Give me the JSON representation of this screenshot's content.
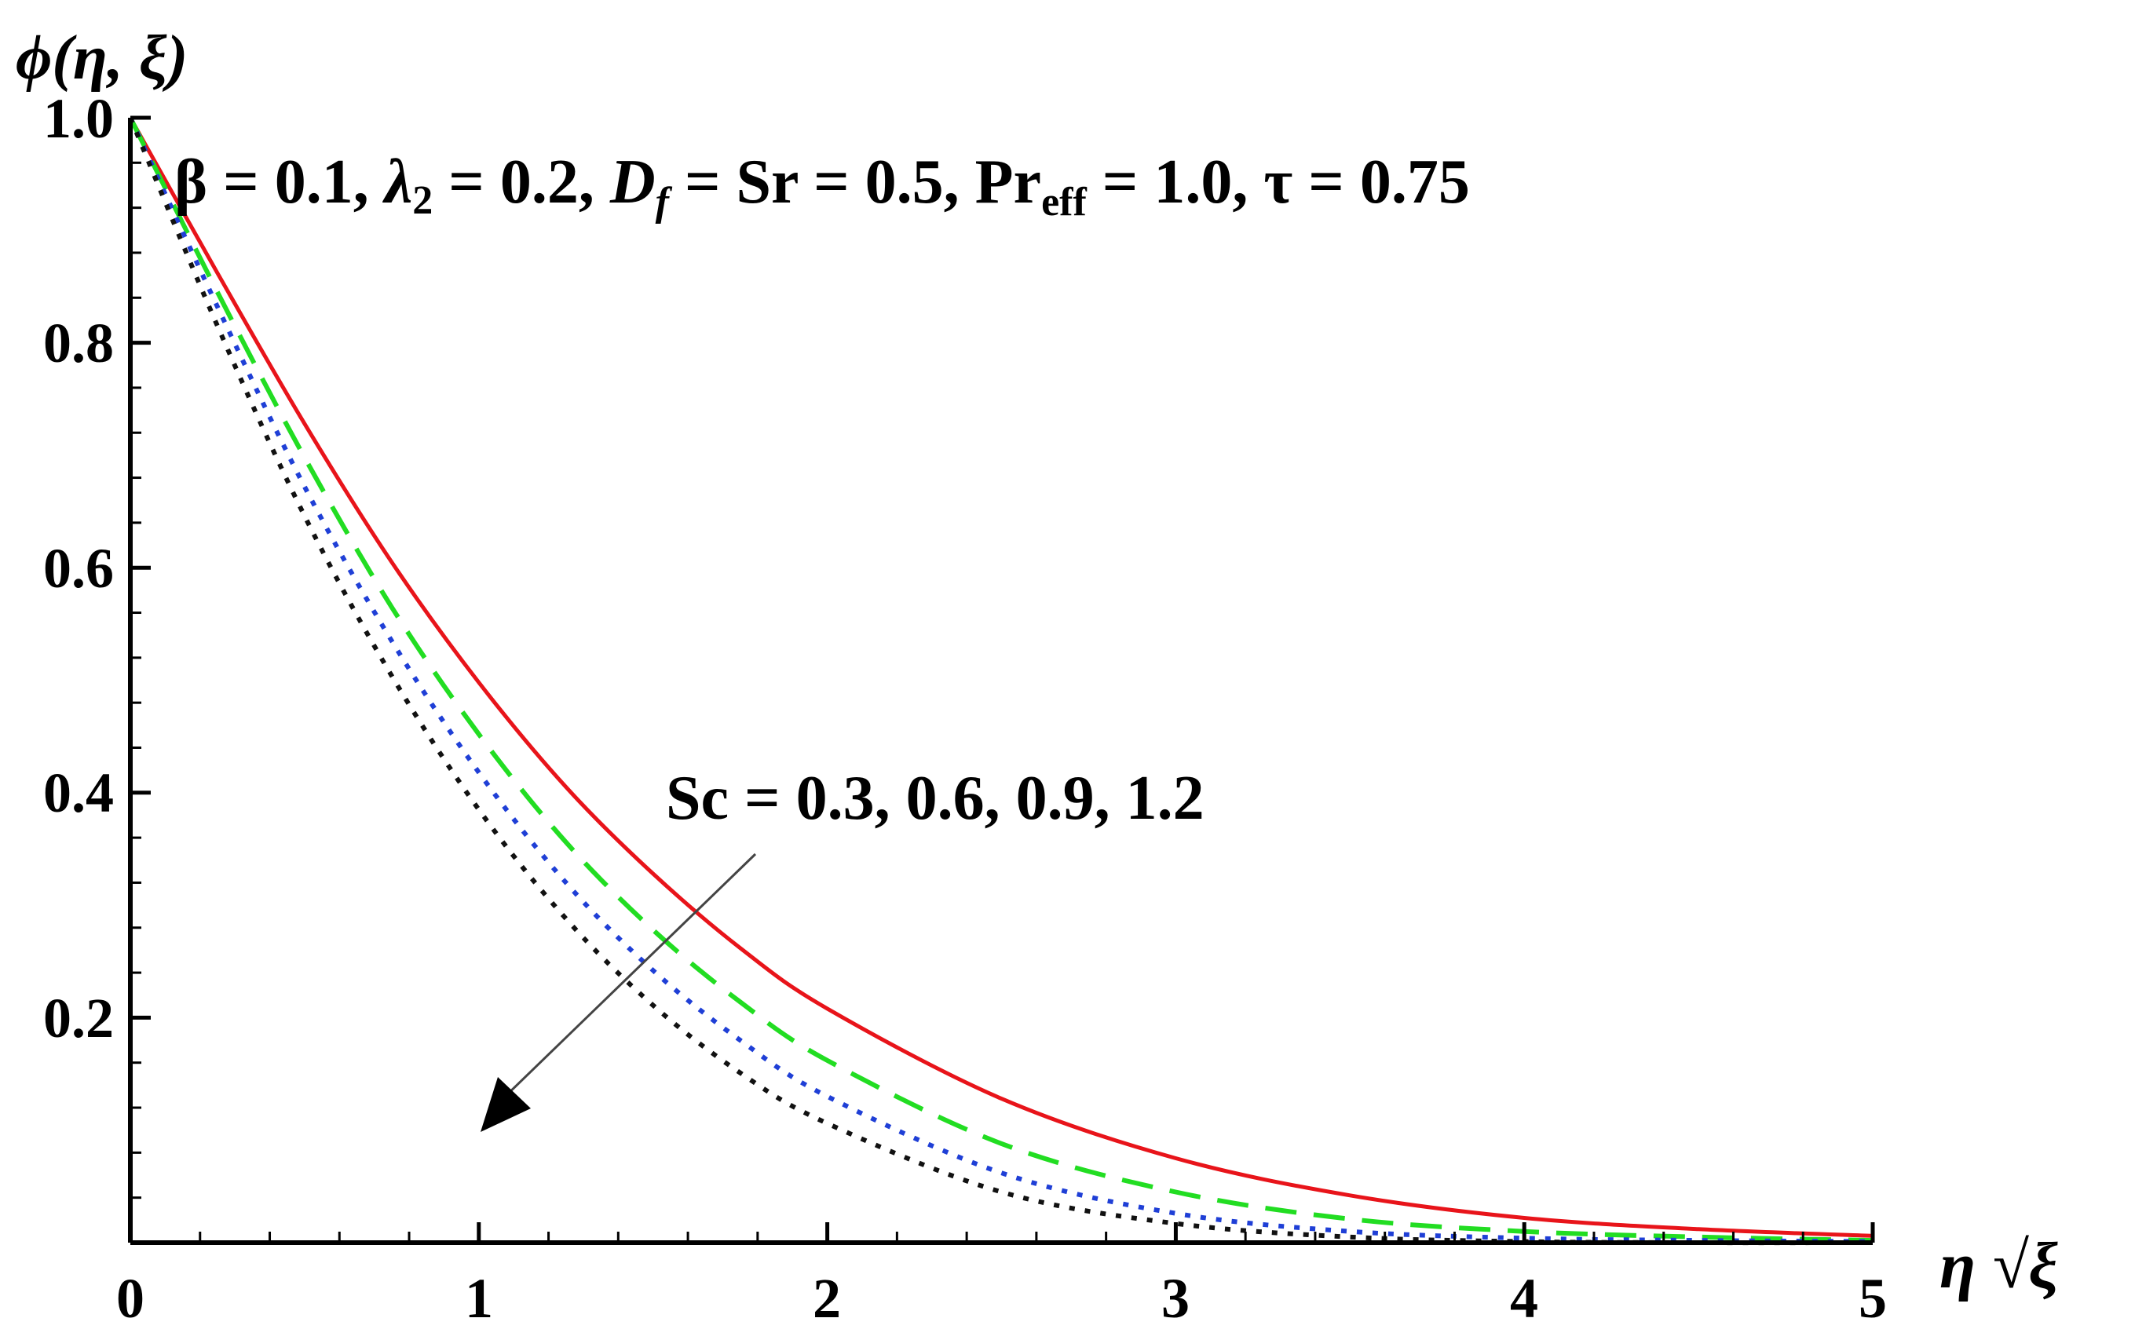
{
  "chart_data": {
    "type": "line",
    "title": "",
    "ylabel": "ϕ(η, ξ)",
    "xlabel": "η √ξ",
    "xlim": [
      0,
      5
    ],
    "ylim": [
      0,
      1.0
    ],
    "x_ticks": [
      "0",
      "1",
      "2",
      "3",
      "4",
      "5"
    ],
    "y_ticks": [
      "0.2",
      "0.4",
      "0.6",
      "0.8",
      "1.0"
    ],
    "grid": false,
    "annotations": {
      "params": "β = 0.1, λ₂ = 0.2, D_f = Sr = 0.5, Pr_eff = 1.0, τ = 0.75",
      "params_parts": {
        "beta": "β = 0.1, ",
        "lambda": "λ",
        "lambda_sub": "2",
        "lambda_val": " = 0.2, ",
        "df": "D",
        "df_sub": "f",
        "sr": " = Sr = 0.5, Pr",
        "pr_sub": "eff",
        "rest": " = 1.0, τ = 0.75"
      },
      "sc": "Sc = 0.3, 0.6, 0.9, 1.2"
    },
    "x": [
      0,
      0.25,
      0.5,
      0.75,
      1.0,
      1.25,
      1.5,
      1.75,
      2.0,
      2.5,
      3.0,
      3.5,
      4.0,
      4.5,
      5.0
    ],
    "series": [
      {
        "sc": 0.3,
        "color": "#e8141a",
        "style": "solid",
        "values": [
          1.0,
          0.862,
          0.728,
          0.605,
          0.498,
          0.405,
          0.328,
          0.262,
          0.208,
          0.128,
          0.075,
          0.042,
          0.022,
          0.012,
          0.006
        ]
      },
      {
        "sc": 0.6,
        "color": "#22dd22",
        "style": "dashed",
        "values": [
          1.0,
          0.845,
          0.698,
          0.565,
          0.452,
          0.356,
          0.278,
          0.214,
          0.162,
          0.088,
          0.045,
          0.021,
          0.01,
          0.005,
          0.002
        ]
      },
      {
        "sc": 0.9,
        "color": "#1f3fd6",
        "style": "dotted",
        "values": [
          1.0,
          0.832,
          0.672,
          0.535,
          0.418,
          0.32,
          0.242,
          0.18,
          0.13,
          0.062,
          0.026,
          0.01,
          0.004,
          0.002,
          0.001
        ]
      },
      {
        "sc": 1.2,
        "color": "#111111",
        "style": "dotted",
        "values": [
          1.0,
          0.815,
          0.646,
          0.504,
          0.385,
          0.288,
          0.211,
          0.151,
          0.106,
          0.045,
          0.017,
          0.005,
          0.001,
          0.0,
          0.0
        ]
      }
    ]
  }
}
